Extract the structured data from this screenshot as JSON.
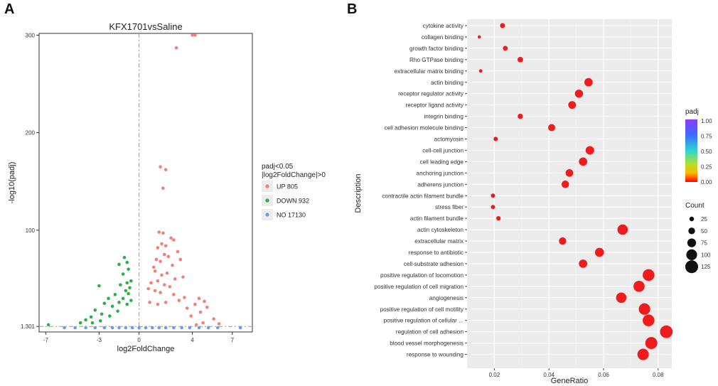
{
  "panels": {
    "a_letter": "A",
    "b_letter": "B"
  },
  "chart_data": [
    {
      "type": "scatter",
      "title": "KFX1701vsSaline",
      "xlabel": "log2FoldChange",
      "ylabel": "-log10(padj)",
      "xlim": [
        -7.5,
        8.5
      ],
      "xticks": [
        -7,
        -3,
        0,
        4,
        7
      ],
      "yticks": [
        1.301,
        100,
        200,
        300
      ],
      "ytick_labels": [
        "1.301",
        "100",
        "200",
        "300"
      ],
      "legend_title": [
        "padj<0.05",
        "|log2FoldChange|>0"
      ],
      "series": [
        {
          "name": "UP 805",
          "color": "#f08078",
          "points": [
            [
              4.0,
              300
            ],
            [
              4.2,
              300
            ],
            [
              2.8,
              287
            ],
            [
              1.6,
              165
            ],
            [
              2.0,
              162
            ],
            [
              1.8,
              143
            ],
            [
              1.5,
              98
            ],
            [
              1.8,
              97
            ],
            [
              2.4,
              92
            ],
            [
              2.6,
              90
            ],
            [
              1.7,
              86
            ],
            [
              2.0,
              84
            ],
            [
              1.4,
              82
            ],
            [
              2.9,
              78
            ],
            [
              1.9,
              75
            ],
            [
              2.2,
              73
            ],
            [
              3.1,
              70
            ],
            [
              1.3,
              70
            ],
            [
              1.6,
              68
            ],
            [
              2.5,
              64
            ],
            [
              1.1,
              62
            ],
            [
              1.2,
              58
            ],
            [
              2.1,
              56
            ],
            [
              1.7,
              54
            ],
            [
              3.3,
              52
            ],
            [
              2.7,
              50
            ],
            [
              1.4,
              48
            ],
            [
              0.9,
              46
            ],
            [
              1.9,
              44
            ],
            [
              2.3,
              42
            ],
            [
              0.7,
              40
            ],
            [
              1.2,
              38
            ],
            [
              1.6,
              36
            ],
            [
              2.6,
              34
            ],
            [
              3.4,
              31
            ],
            [
              4.5,
              30
            ],
            [
              3.0,
              28
            ],
            [
              4.9,
              27
            ],
            [
              2.0,
              26
            ],
            [
              0.8,
              26
            ],
            [
              1.4,
              24
            ],
            [
              4.2,
              24
            ],
            [
              5.1,
              21
            ],
            [
              3.6,
              20
            ],
            [
              4.6,
              16
            ],
            [
              3.9,
              12
            ],
            [
              5.6,
              9
            ],
            [
              4.8,
              5
            ],
            [
              6.0,
              4
            ],
            [
              4.3,
              3
            ]
          ]
        },
        {
          "name": "DOWN 932",
          "color": "#2fae4a",
          "points": [
            [
              -1.1,
              72
            ],
            [
              -0.9,
              67
            ],
            [
              -1.5,
              65
            ],
            [
              -0.8,
              60
            ],
            [
              -1.2,
              55
            ],
            [
              -0.6,
              48
            ],
            [
              -0.9,
              46
            ],
            [
              -1.4,
              44
            ],
            [
              -3.0,
              43
            ],
            [
              -0.7,
              41
            ],
            [
              -1.0,
              38
            ],
            [
              -0.8,
              35
            ],
            [
              -1.8,
              34
            ],
            [
              -2.3,
              30
            ],
            [
              -1.2,
              30
            ],
            [
              -0.6,
              28
            ],
            [
              -1.5,
              26
            ],
            [
              -2.6,
              25
            ],
            [
              -0.9,
              24
            ],
            [
              -2.0,
              22
            ],
            [
              -3.3,
              18
            ],
            [
              -1.6,
              17
            ],
            [
              -2.8,
              14
            ],
            [
              -2.2,
              12
            ],
            [
              -3.6,
              11
            ],
            [
              -4.0,
              8
            ],
            [
              -2.9,
              7
            ],
            [
              -3.5,
              5
            ],
            [
              -4.4,
              5
            ],
            [
              -6.8,
              3
            ]
          ]
        },
        {
          "name": "NO 17130",
          "color": "#6d9bea",
          "points": [
            [
              -5.6,
              0
            ],
            [
              -4.8,
              0
            ],
            [
              -4.0,
              0
            ],
            [
              -3.3,
              0
            ],
            [
              -2.6,
              0
            ],
            [
              -2.0,
              0
            ],
            [
              -1.5,
              0
            ],
            [
              -1.0,
              0
            ],
            [
              -0.5,
              0
            ],
            [
              0.0,
              0
            ],
            [
              0.5,
              0
            ],
            [
              1.0,
              0
            ],
            [
              1.5,
              0
            ],
            [
              2.0,
              0
            ],
            [
              2.6,
              0
            ],
            [
              3.2,
              0
            ],
            [
              3.8,
              0
            ],
            [
              4.5,
              0
            ],
            [
              5.2,
              0
            ],
            [
              5.9,
              0
            ],
            [
              7.6,
              0
            ]
          ]
        }
      ]
    },
    {
      "type": "scatter",
      "xlabel": "GeneRatio",
      "ylabel": "Description",
      "xlim": [
        0.01,
        0.085
      ],
      "xticks": [
        0.02,
        0.04,
        0.06,
        0.08
      ],
      "xtick_labels": [
        "0.02",
        "0.04",
        "0.06",
        "0.08"
      ],
      "color_legend_title": "padj",
      "color_legend_ticks": [
        "1.00",
        "0.75",
        "0.50",
        "0.25",
        "0.00"
      ],
      "size_legend_title": "Count",
      "size_legend_values": [
        25,
        50,
        75,
        100,
        125
      ],
      "terms": [
        {
          "label": "cytokine activity",
          "ratio": 0.023,
          "count": 30
        },
        {
          "label": "collagen binding",
          "ratio": 0.0145,
          "count": 8
        },
        {
          "label": "growth factor binding",
          "ratio": 0.024,
          "count": 28
        },
        {
          "label": "Rho GTPase binding",
          "ratio": 0.0295,
          "count": 36
        },
        {
          "label": "extracellular matrix binding",
          "ratio": 0.015,
          "count": 11
        },
        {
          "label": "actin binding",
          "ratio": 0.0545,
          "count": 70
        },
        {
          "label": "receptor regulator activity",
          "ratio": 0.051,
          "count": 68
        },
        {
          "label": "receptor ligand activity",
          "ratio": 0.0485,
          "count": 63
        },
        {
          "label": "integrin binding",
          "ratio": 0.0295,
          "count": 33
        },
        {
          "label": "cell adhesion molecule binding",
          "ratio": 0.041,
          "count": 55
        },
        {
          "label": "actomyosin",
          "ratio": 0.0205,
          "count": 22
        },
        {
          "label": "cell-cell junction",
          "ratio": 0.055,
          "count": 72
        },
        {
          "label": "cell leading edge",
          "ratio": 0.0525,
          "count": 70
        },
        {
          "label": "anchoring junction",
          "ratio": 0.0475,
          "count": 62
        },
        {
          "label": "adherens junction",
          "ratio": 0.046,
          "count": 60
        },
        {
          "label": "contractile actin filament bundle",
          "ratio": 0.0195,
          "count": 20
        },
        {
          "label": "stress fiber",
          "ratio": 0.0195,
          "count": 20
        },
        {
          "label": "actin filament bundle",
          "ratio": 0.0215,
          "count": 23
        },
        {
          "label": "actin cytoskeleton",
          "ratio": 0.067,
          "count": 95
        },
        {
          "label": "extracellular matrix",
          "ratio": 0.045,
          "count": 58
        },
        {
          "label": "response to antibiotic",
          "ratio": 0.0585,
          "count": 78
        },
        {
          "label": "cell-substrate adhesion",
          "ratio": 0.0525,
          "count": 70
        },
        {
          "label": "positive regulation of locomotion",
          "ratio": 0.0765,
          "count": 112
        },
        {
          "label": "positive regulation of cell migration",
          "ratio": 0.073,
          "count": 104
        },
        {
          "label": "angiogenesis",
          "ratio": 0.0665,
          "count": 95
        },
        {
          "label": "positive regulation of cell motility",
          "ratio": 0.075,
          "count": 108
        },
        {
          "label": "positive regulation of cellular ...",
          "ratio": 0.0765,
          "count": 112
        },
        {
          "label": "regulation of cell adhesion",
          "ratio": 0.083,
          "count": 122
        },
        {
          "label": "blood vessel morphogenesis",
          "ratio": 0.0775,
          "count": 115
        },
        {
          "label": "response to wounding",
          "ratio": 0.0745,
          "count": 108
        }
      ]
    }
  ]
}
